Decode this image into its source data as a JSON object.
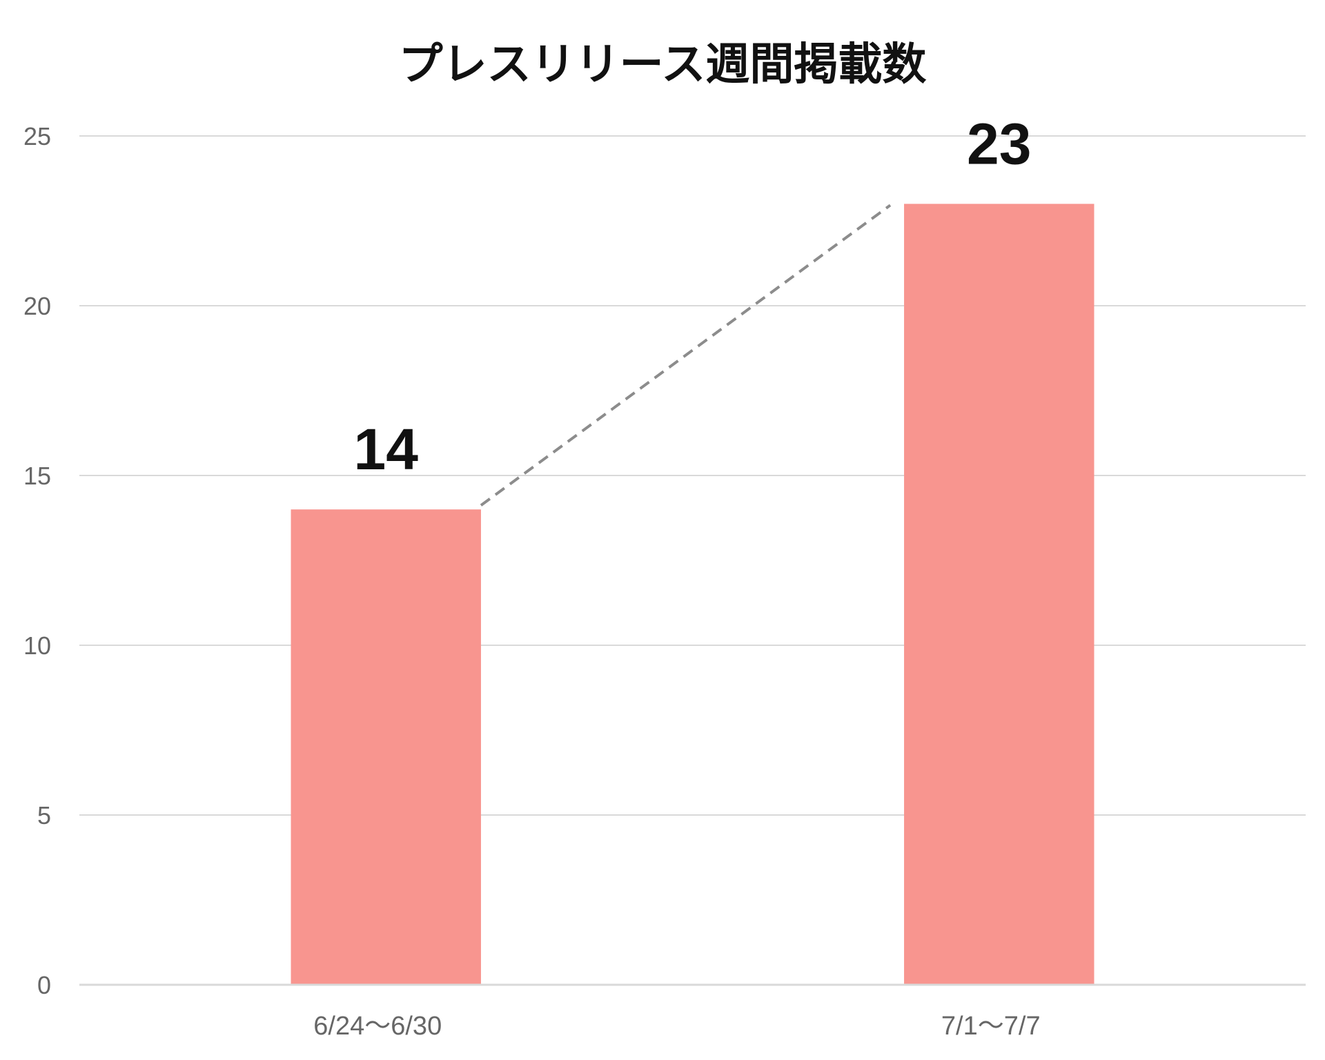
{
  "chart_data": {
    "type": "bar",
    "title": "プレスリリース週間掲載数",
    "categories": [
      "6/24〜6/30",
      "7/1〜7/7"
    ],
    "values": [
      14,
      23
    ],
    "data_labels": [
      "14",
      "23"
    ],
    "ylim": [
      0,
      25
    ],
    "yticks": [
      0,
      5,
      10,
      15,
      20,
      25
    ],
    "grid": true,
    "legend": "none",
    "connector_line": "dashed",
    "colors": {
      "bar": "#f8958f",
      "grid": "#d9d9d9",
      "connector": "#8c8c8c"
    }
  }
}
